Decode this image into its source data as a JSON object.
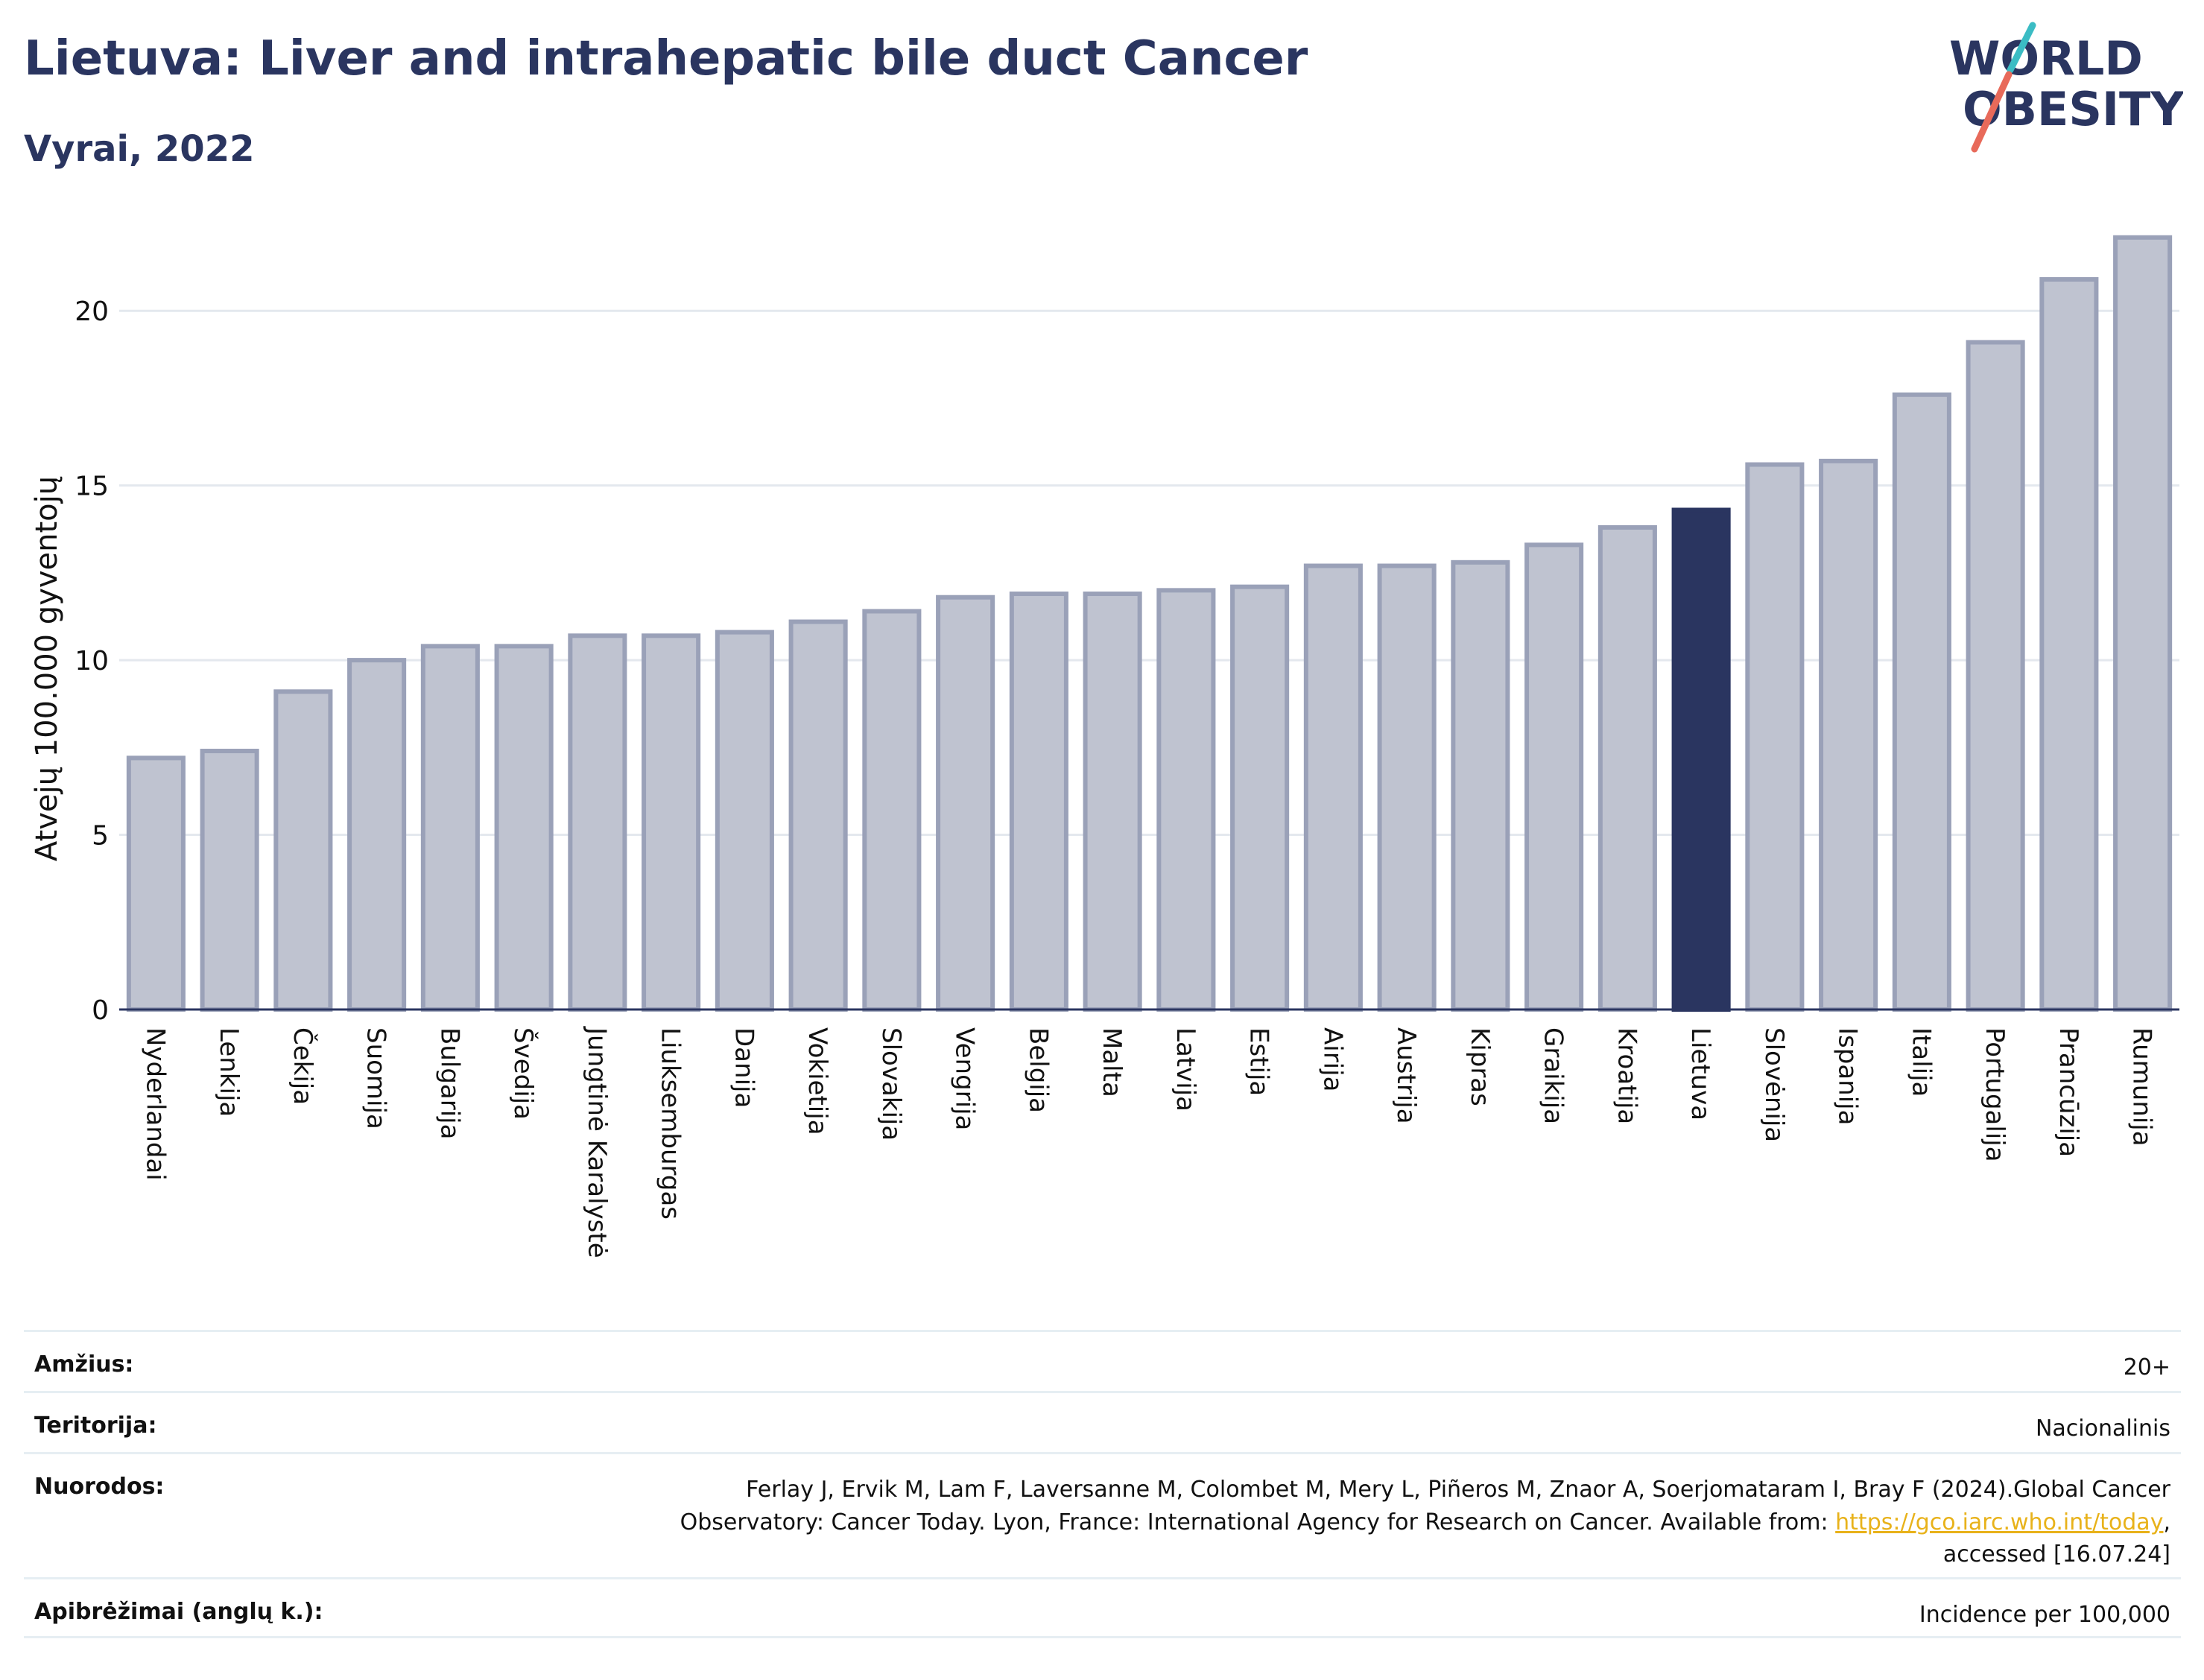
{
  "header": {
    "title": "Lietuva: Liver and intrahepatic bile duct Cancer",
    "subtitle": "Vyrai, 2022"
  },
  "logo": {
    "line1": "WORLD",
    "line2": "OBESITY",
    "text_color": "#2a3560",
    "slash_colors": [
      "#3bbcc4",
      "#e86a5a"
    ]
  },
  "chart_data": {
    "type": "bar",
    "ylabel": "Atvejų 100.000 gyventojų",
    "xlabel": "",
    "ylim": [
      0,
      22.5
    ],
    "yticks": [
      0,
      5,
      10,
      15,
      20
    ],
    "grid": true,
    "highlight": "Lietuva",
    "colors": {
      "bar": "#bfc3d0",
      "bar_border": "#9aa1b8",
      "highlight": "#2a3560",
      "grid": "#e4e8ee",
      "axis": "#2a3560"
    },
    "categories": [
      "Nyderlandai",
      "Lenkija",
      "Čekija",
      "Suomija",
      "Bulgarija",
      "Švedija",
      "Jungtinė Karalystė",
      "Liuksemburgas",
      "Danija",
      "Vokietija",
      "Slovakija",
      "Vengrija",
      "Belgija",
      "Malta",
      "Latvija",
      "Estija",
      "Airija",
      "Austrija",
      "Kipras",
      "Graikija",
      "Kroatija",
      "Lietuva",
      "Slovėnija",
      "Ispanija",
      "Italija",
      "Portugalija",
      "Prancūzija",
      "Rumunija"
    ],
    "values": [
      7.2,
      7.4,
      9.1,
      10.0,
      10.4,
      10.4,
      10.7,
      10.7,
      10.8,
      11.1,
      11.4,
      11.8,
      11.9,
      11.9,
      12.0,
      12.1,
      12.7,
      12.7,
      12.8,
      13.3,
      13.8,
      14.3,
      15.6,
      15.7,
      17.6,
      19.1,
      20.9,
      22.1
    ]
  },
  "meta": {
    "rows": [
      {
        "label": "Amžius:",
        "value": "20+"
      },
      {
        "label": "Teritorija:",
        "value": "Nacionalinis"
      },
      {
        "label": "Nuorodos:",
        "value": "Ferlay J, Ervik M, Lam F, Laversanne M, Colombet M, Mery L, Piñeros M, Znaor A, Soerjomataram I, Bray F (2024).Global Cancer Observatory: Cancer Today. Lyon, France: International Agency for Research on Cancer. Available from: ",
        "link": "https://gco.iarc.who.int/today",
        "suffix": ", accessed [16.07.24]"
      },
      {
        "label": "Apibrėžimai (anglų k.):",
        "value": "Incidence per 100,000"
      }
    ]
  }
}
